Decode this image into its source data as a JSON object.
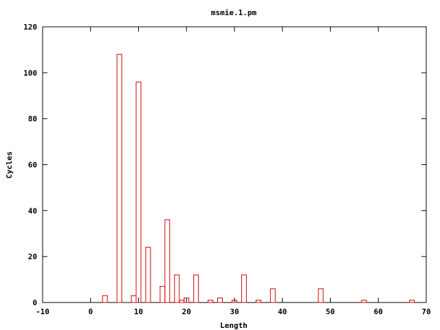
{
  "chart_data": {
    "type": "bar",
    "title": "msmie.1.pm",
    "xlabel": "Length",
    "ylabel": "Cycles",
    "xlim": [
      -10,
      70
    ],
    "ylim": [
      0,
      120
    ],
    "xticks": [
      -10,
      0,
      10,
      20,
      30,
      40,
      50,
      60,
      70
    ],
    "yticks": [
      0,
      20,
      40,
      60,
      80,
      100,
      120
    ],
    "grid": false,
    "legend": "none",
    "bar_color": "#cc0000",
    "x": [
      3,
      6,
      9,
      10,
      12,
      15,
      16,
      18,
      19,
      20,
      22,
      25,
      27,
      30,
      32,
      35,
      38,
      48,
      57,
      67
    ],
    "values": [
      3,
      108,
      3,
      96,
      24,
      7,
      36,
      12,
      1,
      2,
      12,
      1,
      2,
      1,
      12,
      1,
      6,
      6,
      1,
      1
    ]
  }
}
